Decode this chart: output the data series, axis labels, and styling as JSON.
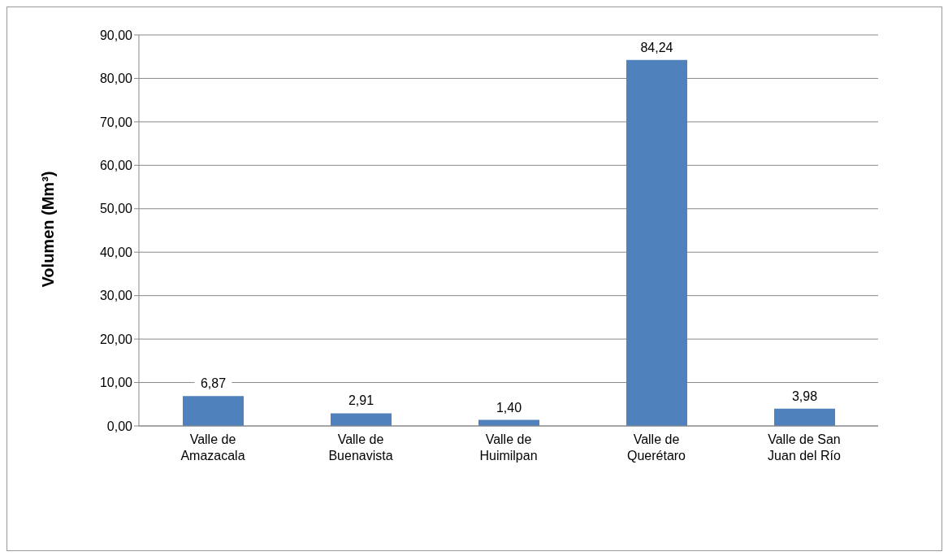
{
  "chart_data": {
    "type": "bar",
    "ylabel": "Volumen (Mm³)",
    "categories": [
      "Valle de Amazacala",
      "Valle de Buenavista",
      "Valle de Huimilpan",
      "Valle de Querétaro",
      "Valle de San Juan del Río"
    ],
    "values": [
      6.87,
      2.91,
      1.4,
      84.24,
      3.98
    ],
    "value_labels": [
      "6,87",
      "2,91",
      "1,40",
      "84,24",
      "3,98"
    ],
    "color": "#4f81bd",
    "ylim": [
      0,
      90
    ],
    "yticks": [
      {
        "value": 0,
        "label": "0,00"
      },
      {
        "value": 10,
        "label": "10,00"
      },
      {
        "value": 20,
        "label": "20,00"
      },
      {
        "value": 30,
        "label": "30,00"
      },
      {
        "value": 40,
        "label": "40,00"
      },
      {
        "value": 50,
        "label": "50,00"
      },
      {
        "value": 60,
        "label": "60,00"
      },
      {
        "value": 70,
        "label": "70,00"
      },
      {
        "value": 80,
        "label": "80,00"
      },
      {
        "value": 90,
        "label": "90,00"
      }
    ],
    "grid": "y",
    "legend": false
  }
}
